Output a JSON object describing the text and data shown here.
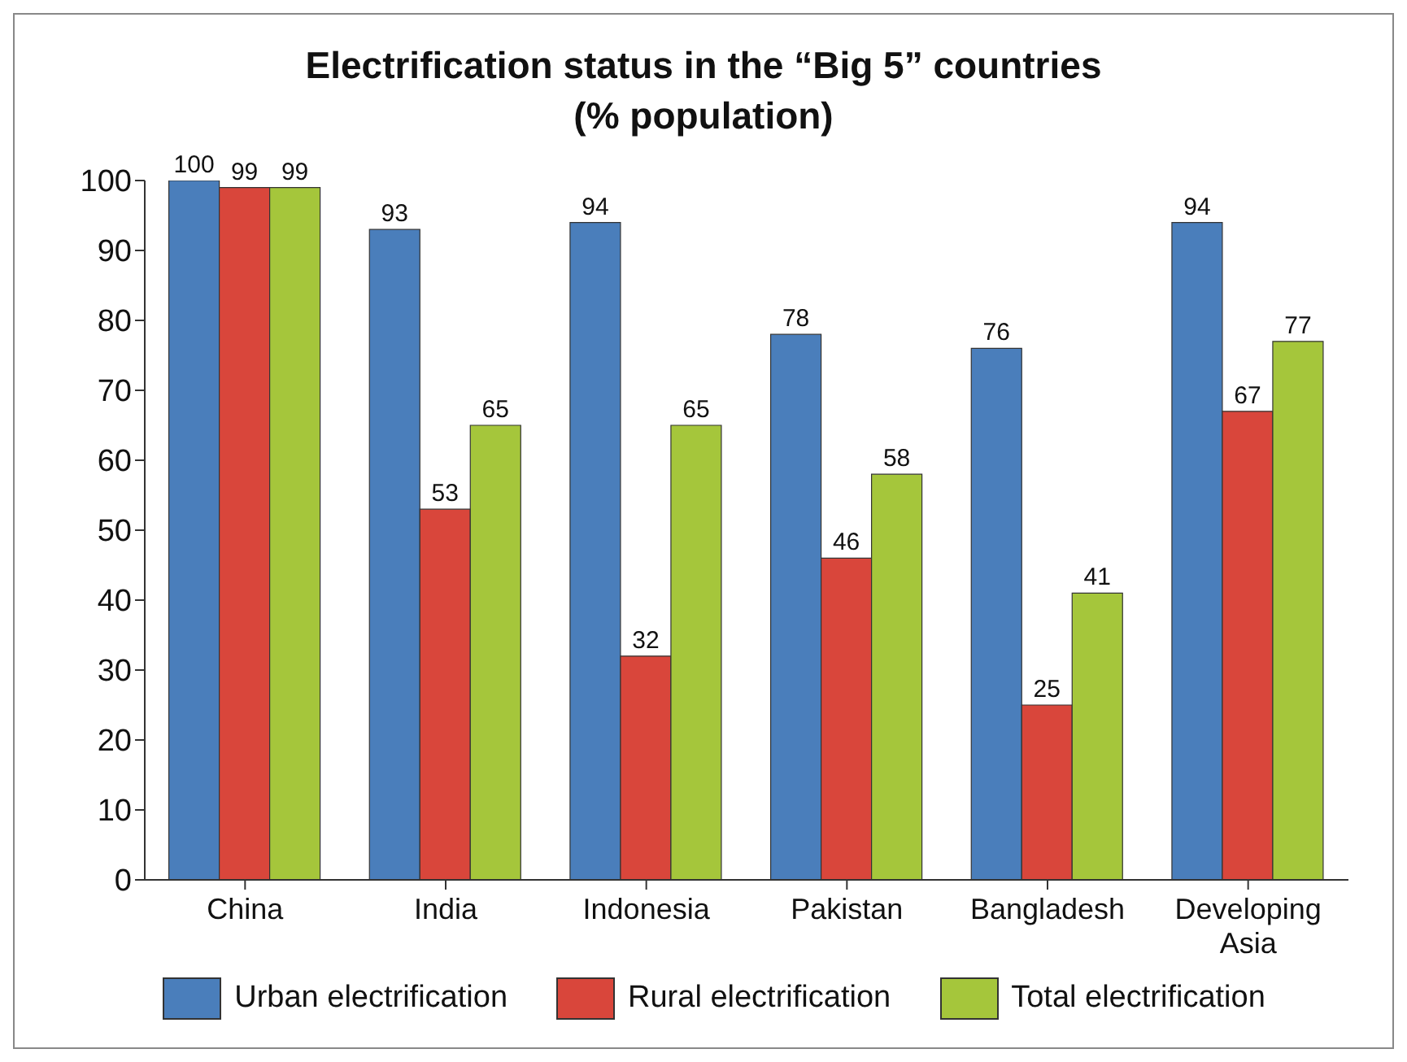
{
  "chart_data": {
    "type": "bar",
    "title": "Electrification status in the “Big 5” countries",
    "subtitle": "(% population)",
    "categories": [
      "China",
      "India",
      "Indonesia",
      "Pakistan",
      "Bangladesh",
      "Developing Asia"
    ],
    "series": [
      {
        "name": "Urban electrification",
        "color": "#4a7ebb",
        "values": [
          100,
          93,
          94,
          78,
          76,
          94
        ]
      },
      {
        "name": "Rural electrification",
        "color": "#d9463b",
        "values": [
          99,
          53,
          32,
          46,
          25,
          67
        ]
      },
      {
        "name": "Total electrification",
        "color": "#a5c63b",
        "values": [
          99,
          65,
          65,
          58,
          41,
          77
        ]
      }
    ],
    "ylim": [
      0,
      100
    ],
    "yticks": [
      0,
      10,
      20,
      30,
      40,
      50,
      60,
      70,
      80,
      90,
      100
    ],
    "data_labels": true,
    "grid": false,
    "legend": "bottom"
  }
}
